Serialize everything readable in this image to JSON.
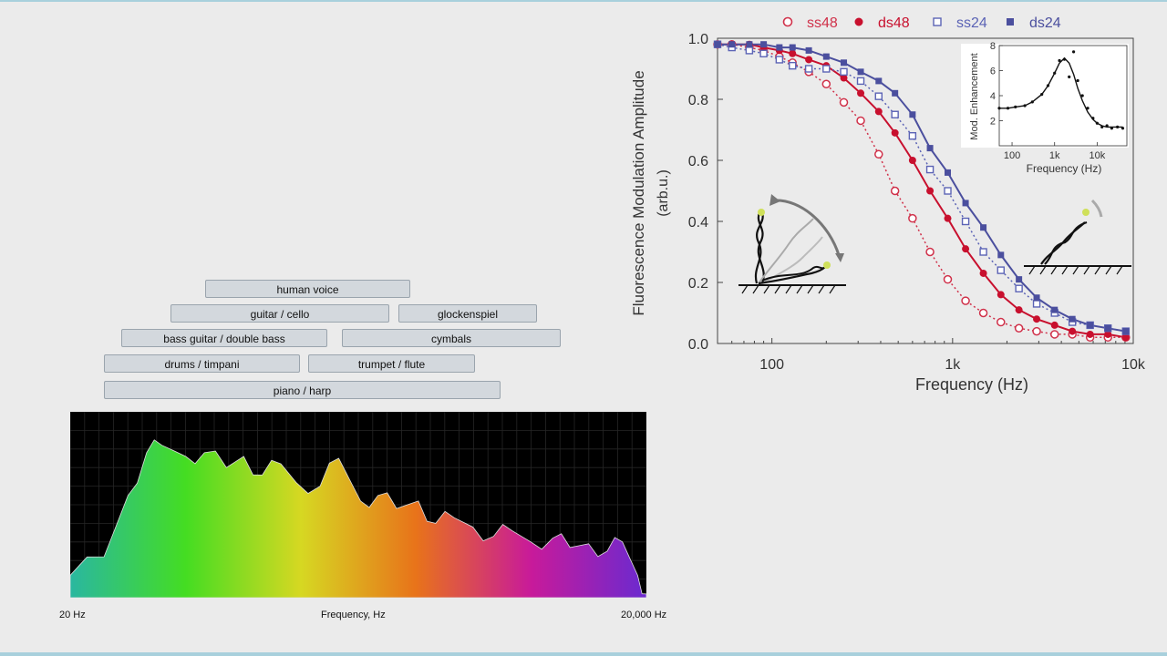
{
  "instruments": [
    {
      "label": "human voice"
    },
    {
      "label": "guitar / cello"
    },
    {
      "label": "glockenspiel"
    },
    {
      "label": "bass guitar / double bass"
    },
    {
      "label": "cymbals"
    },
    {
      "label": "drums / timpani"
    },
    {
      "label": "trumpet / flute"
    },
    {
      "label": "piano / harp"
    }
  ],
  "spectrum": {
    "xlabel": "Frequency, Hz",
    "x_min_label": "20 Hz",
    "x_max_label": "20,000 Hz"
  },
  "colors": {
    "ss48": "#d0314a",
    "ds48": "#c8102e",
    "ss24": "#5b63b5",
    "ds24": "#4b4f9e"
  },
  "chart_data": [
    {
      "type": "area",
      "xscale": "log",
      "xlim": [
        20,
        20000
      ],
      "xlabel": "Frequency, Hz",
      "x_tick_labels": [
        "20 Hz",
        "20,000 Hz"
      ],
      "color_gradient": [
        "#2ab7a0",
        "#44dd22",
        "#d6d822",
        "#e8731a",
        "#c81a9a",
        "#6a2ad0"
      ],
      "x": [
        20,
        30,
        40,
        50,
        60,
        80,
        100,
        130,
        160,
        200,
        250,
        300,
        400,
        500,
        650,
        800,
        1000,
        1300,
        1600,
        2000,
        2500,
        3200,
        4000,
        5000,
        6500,
        8000,
        10000,
        12500,
        15000,
        18000,
        20000
      ],
      "y": [
        0.12,
        0.22,
        0.55,
        0.78,
        0.82,
        0.76,
        0.78,
        0.7,
        0.76,
        0.66,
        0.72,
        0.62,
        0.6,
        0.75,
        0.52,
        0.55,
        0.48,
        0.52,
        0.4,
        0.43,
        0.38,
        0.33,
        0.36,
        0.3,
        0.32,
        0.27,
        0.29,
        0.25,
        0.3,
        0.12,
        0.02
      ]
    },
    {
      "type": "scatter",
      "xscale": "log",
      "xlim": [
        50,
        10000
      ],
      "ylim": [
        0.0,
        1.0
      ],
      "xlabel": "Frequency (Hz)",
      "ylabel": "Fluorescence Modulation Amplitude",
      "ylabel_unit": "(arb.u.)",
      "x_tick_labels": [
        "100",
        "1k",
        "10k"
      ],
      "y_tick_labels": [
        "0.0",
        "0.2",
        "0.4",
        "0.6",
        "0.8",
        "1.0"
      ],
      "legend_position": "top",
      "series": [
        {
          "name": "ss48",
          "marker": "open-circle",
          "fit": "dotted",
          "x": [
            50,
            60,
            75,
            90,
            110,
            130,
            160,
            200,
            250,
            310,
            390,
            480,
            600,
            750,
            940,
            1180,
            1480,
            1850,
            2330,
            2920,
            3670,
            4600,
            5770,
            7240,
            9090
          ],
          "y": [
            0.98,
            0.98,
            0.97,
            0.96,
            0.94,
            0.92,
            0.89,
            0.85,
            0.79,
            0.73,
            0.62,
            0.5,
            0.41,
            0.3,
            0.21,
            0.14,
            0.1,
            0.07,
            0.05,
            0.04,
            0.03,
            0.03,
            0.02,
            0.02,
            0.02
          ]
        },
        {
          "name": "ds48",
          "marker": "filled-circle",
          "fit": "solid",
          "x": [
            50,
            60,
            75,
            90,
            110,
            130,
            160,
            200,
            250,
            310,
            390,
            480,
            600,
            750,
            940,
            1180,
            1480,
            1850,
            2330,
            2920,
            3670,
            4600,
            5770,
            7240,
            9090
          ],
          "y": [
            0.98,
            0.98,
            0.98,
            0.97,
            0.96,
            0.95,
            0.93,
            0.91,
            0.87,
            0.82,
            0.76,
            0.69,
            0.6,
            0.5,
            0.41,
            0.31,
            0.23,
            0.16,
            0.11,
            0.08,
            0.06,
            0.04,
            0.03,
            0.03,
            0.02
          ]
        },
        {
          "name": "ss24",
          "marker": "open-square",
          "fit": "dotted",
          "x": [
            50,
            60,
            75,
            90,
            110,
            130,
            160,
            200,
            250,
            310,
            390,
            480,
            600,
            750,
            940,
            1180,
            1480,
            1850,
            2330,
            2920,
            3670,
            4600,
            5770,
            7240,
            9090
          ],
          "y": [
            0.98,
            0.97,
            0.96,
            0.95,
            0.93,
            0.91,
            0.9,
            0.9,
            0.89,
            0.86,
            0.81,
            0.75,
            0.68,
            0.57,
            0.5,
            0.4,
            0.3,
            0.24,
            0.18,
            0.13,
            0.1,
            0.07,
            0.06,
            0.05,
            0.04
          ]
        },
        {
          "name": "ds24",
          "marker": "filled-square",
          "fit": "solid",
          "x": [
            50,
            60,
            75,
            90,
            110,
            130,
            160,
            200,
            250,
            310,
            390,
            480,
            600,
            750,
            940,
            1180,
            1480,
            1850,
            2330,
            2920,
            3670,
            4600,
            5770,
            7240,
            9090
          ],
          "y": [
            0.98,
            0.98,
            0.98,
            0.98,
            0.97,
            0.97,
            0.96,
            0.94,
            0.92,
            0.89,
            0.86,
            0.82,
            0.75,
            0.64,
            0.56,
            0.46,
            0.38,
            0.29,
            0.21,
            0.15,
            0.11,
            0.08,
            0.06,
            0.05,
            0.04
          ]
        }
      ]
    },
    {
      "type": "scatter",
      "inset": true,
      "xscale": "log",
      "xlim": [
        50,
        50000
      ],
      "ylim": [
        0,
        8
      ],
      "xlabel": "Frequency (Hz)",
      "ylabel": "Mod. Enhancement",
      "x_tick_labels": [
        "100",
        "1k",
        "10k"
      ],
      "y_tick_labels": [
        "2",
        "4",
        "6",
        "8"
      ],
      "series": [
        {
          "marker": "dot",
          "fit": "solid",
          "x": [
            50,
            80,
            120,
            200,
            300,
            500,
            700,
            1000,
            1300,
            1700,
            2200,
            2800,
            3500,
            4500,
            6000,
            8000,
            10000,
            13000,
            17000,
            22000,
            30000,
            40000
          ],
          "y": [
            3.0,
            3.0,
            3.1,
            3.2,
            3.5,
            4.1,
            4.8,
            5.8,
            6.8,
            6.9,
            5.5,
            7.5,
            5.2,
            4.0,
            3.0,
            2.2,
            1.8,
            1.5,
            1.6,
            1.4,
            1.5,
            1.4
          ]
        }
      ]
    }
  ]
}
